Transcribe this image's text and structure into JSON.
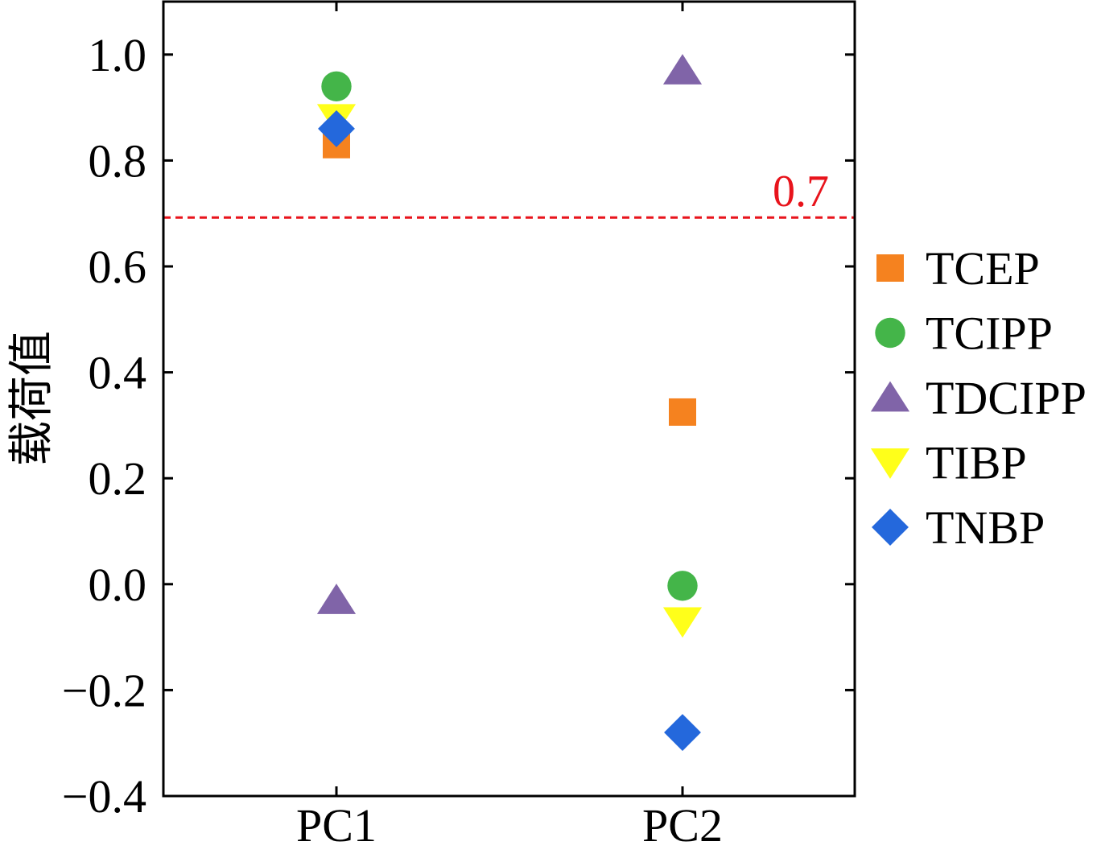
{
  "chart_data": {
    "type": "scatter",
    "categories": [
      "PC1",
      "PC2"
    ],
    "ylabel": "载荷值",
    "ylim": [
      -0.4,
      1.1
    ],
    "yticks": [
      1.0,
      0.8,
      0.6,
      0.4,
      0.2,
      0.0,
      -0.2,
      -0.4
    ],
    "ytick_labels": [
      "1.0",
      "0.8",
      "0.6",
      "0.4",
      "0.2",
      "0.0",
      "−0.2",
      "−0.4"
    ],
    "threshold": {
      "value": 0.7,
      "label": "0.7",
      "color": "#e8141c",
      "style": "dashed"
    },
    "grid": false,
    "legend_position": "right",
    "series": [
      {
        "name": "TCEP",
        "marker": "square",
        "color": "#f5821f",
        "values": [
          0.83,
          0.325
        ]
      },
      {
        "name": "TCIPP",
        "marker": "circle",
        "color": "#44b549",
        "values": [
          0.94,
          -0.003
        ]
      },
      {
        "name": "TDCIPP",
        "marker": "triangle-up",
        "color": "#8064a8",
        "values": [
          -0.03,
          0.97
        ]
      },
      {
        "name": "TIBP",
        "marker": "triangle-down",
        "color": "#ffff1a",
        "values": [
          0.88,
          -0.07
        ]
      },
      {
        "name": "TNBP",
        "marker": "diamond",
        "color": "#2468dc",
        "values": [
          0.86,
          -0.28
        ]
      }
    ]
  }
}
